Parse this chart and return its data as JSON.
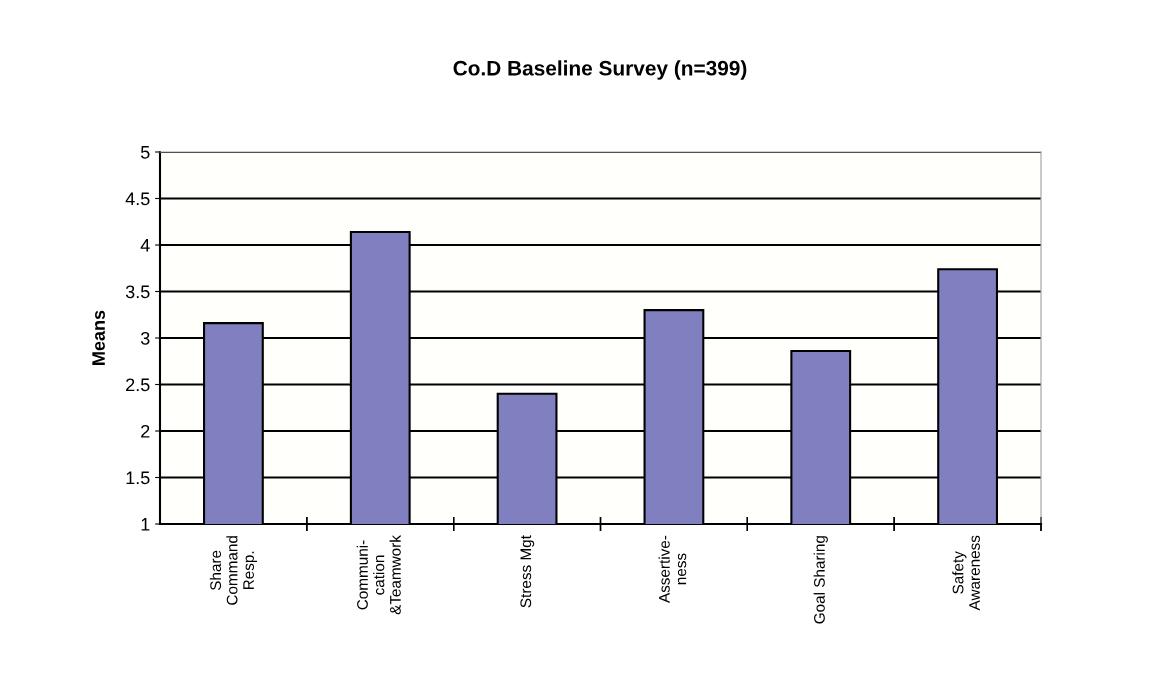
{
  "chart_data": {
    "type": "bar",
    "title": "Co.D Baseline Survey (n=399)",
    "ylabel": "Means",
    "categories": [
      "Share\nCommand\nResp.",
      "Communi-\ncation\n&Teamwork",
      "Stress Mgt",
      "Assertive-\nness",
      "Goal Sharing",
      "Safety\nAwareness"
    ],
    "values": [
      3.16,
      4.14,
      2.4,
      3.3,
      2.86,
      3.74
    ],
    "color": "#8080c0",
    "ylim": [
      1,
      5
    ],
    "yticks": [
      1,
      1.5,
      2,
      2.5,
      3,
      3.5,
      4,
      4.5,
      5
    ],
    "grid": "y"
  }
}
